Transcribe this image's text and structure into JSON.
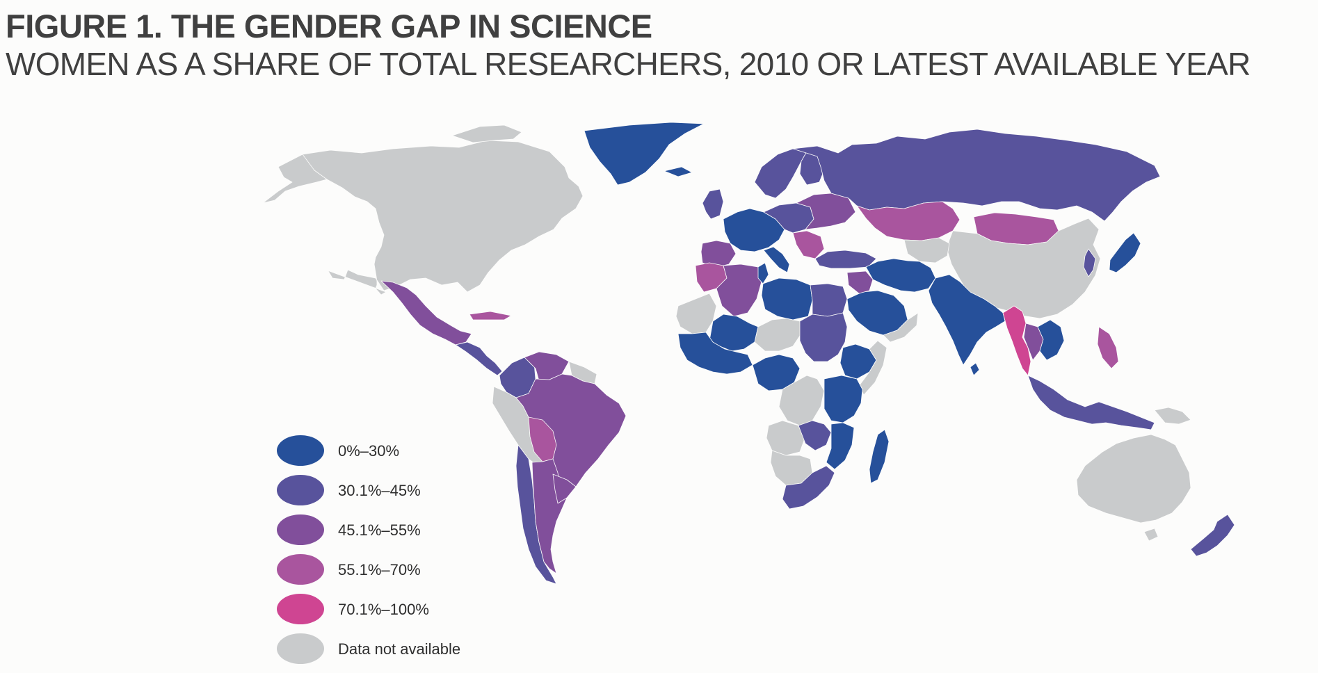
{
  "figure": {
    "title": "FIGURE 1.  THE GENDER GAP IN SCIENCE",
    "subtitle": "WOMEN AS A SHARE OF TOTAL RESEARCHERS, 2010 OR LATEST AVAILABLE YEAR"
  },
  "legend": {
    "items": [
      {
        "label": "0%–30%",
        "color": "#26509a"
      },
      {
        "label": "30.1%–45%",
        "color": "#58539c"
      },
      {
        "label": "45.1%–55%",
        "color": "#814f9b"
      },
      {
        "label": "55.1%–70%",
        "color": "#a9559e"
      },
      {
        "label": "70.1%–100%",
        "color": "#cf4592"
      },
      {
        "label": "Data not available",
        "color": "#c9cbcc"
      }
    ]
  },
  "map": {
    "regions": [
      {
        "id": "greenland",
        "category": 0
      },
      {
        "id": "north-america",
        "category": 5
      },
      {
        "id": "alaska",
        "category": 5
      },
      {
        "id": "canadian-arctic-islands",
        "category": 5
      },
      {
        "id": "mexico",
        "category": 2
      },
      {
        "id": "central-america",
        "category": 1
      },
      {
        "id": "caribbean",
        "category": 3
      },
      {
        "id": "colombia",
        "category": 1
      },
      {
        "id": "venezuela",
        "category": 2
      },
      {
        "id": "guyanas",
        "category": 5
      },
      {
        "id": "peru-ecuador",
        "category": 5
      },
      {
        "id": "brazil",
        "category": 2
      },
      {
        "id": "bolivia",
        "category": 3
      },
      {
        "id": "chile",
        "category": 1
      },
      {
        "id": "argentina",
        "category": 2
      },
      {
        "id": "paraguay-uruguay",
        "category": 2
      },
      {
        "id": "iceland",
        "category": 0
      },
      {
        "id": "scandinavia",
        "category": 1
      },
      {
        "id": "finland",
        "category": 1
      },
      {
        "id": "uk-ireland",
        "category": 1
      },
      {
        "id": "western-europe",
        "category": 0
      },
      {
        "id": "iberia",
        "category": 2
      },
      {
        "id": "central-europe",
        "category": 1
      },
      {
        "id": "eastern-europe",
        "category": 2
      },
      {
        "id": "italy",
        "category": 0
      },
      {
        "id": "balkans",
        "category": 3
      },
      {
        "id": "turkey",
        "category": 1
      },
      {
        "id": "russia",
        "category": 1
      },
      {
        "id": "kazakhstan",
        "category": 3
      },
      {
        "id": "mongolia",
        "category": 3
      },
      {
        "id": "china",
        "category": 5
      },
      {
        "id": "korea",
        "category": 1
      },
      {
        "id": "japan",
        "category": 0
      },
      {
        "id": "central-asia",
        "category": 5
      },
      {
        "id": "iran-middle-east",
        "category": 0
      },
      {
        "id": "saudi-arabia",
        "category": 0
      },
      {
        "id": "yemen-oman",
        "category": 5
      },
      {
        "id": "iraq-syria",
        "category": 2
      },
      {
        "id": "south-asia",
        "category": 0
      },
      {
        "id": "sri-lanka",
        "category": 0
      },
      {
        "id": "myanmar",
        "category": 4
      },
      {
        "id": "thailand",
        "category": 2
      },
      {
        "id": "indochina",
        "category": 0
      },
      {
        "id": "philippines",
        "category": 3
      },
      {
        "id": "malaysia-indonesia",
        "category": 1
      },
      {
        "id": "papua",
        "category": 5
      },
      {
        "id": "australia",
        "category": 5
      },
      {
        "id": "tasmania",
        "category": 5
      },
      {
        "id": "new-zealand",
        "category": 1
      },
      {
        "id": "morocco",
        "category": 3
      },
      {
        "id": "algeria",
        "category": 2
      },
      {
        "id": "tunisia",
        "category": 0
      },
      {
        "id": "libya",
        "category": 0
      },
      {
        "id": "egypt",
        "category": 1
      },
      {
        "id": "western-sahara-mauritania",
        "category": 5
      },
      {
        "id": "mali-niger",
        "category": 0
      },
      {
        "id": "west-africa",
        "category": 0
      },
      {
        "id": "sahel-central",
        "category": 5
      },
      {
        "id": "sudan",
        "category": 1
      },
      {
        "id": "ethiopia",
        "category": 0
      },
      {
        "id": "horn-somalia",
        "category": 5
      },
      {
        "id": "central-africa",
        "category": 0
      },
      {
        "id": "congo",
        "category": 5
      },
      {
        "id": "east-africa",
        "category": 0
      },
      {
        "id": "angola",
        "category": 5
      },
      {
        "id": "zambia-region",
        "category": 1
      },
      {
        "id": "mozambique",
        "category": 0
      },
      {
        "id": "namibia-botswana",
        "category": 5
      },
      {
        "id": "southern-africa",
        "category": 1
      },
      {
        "id": "madagascar",
        "category": 0
      }
    ]
  }
}
